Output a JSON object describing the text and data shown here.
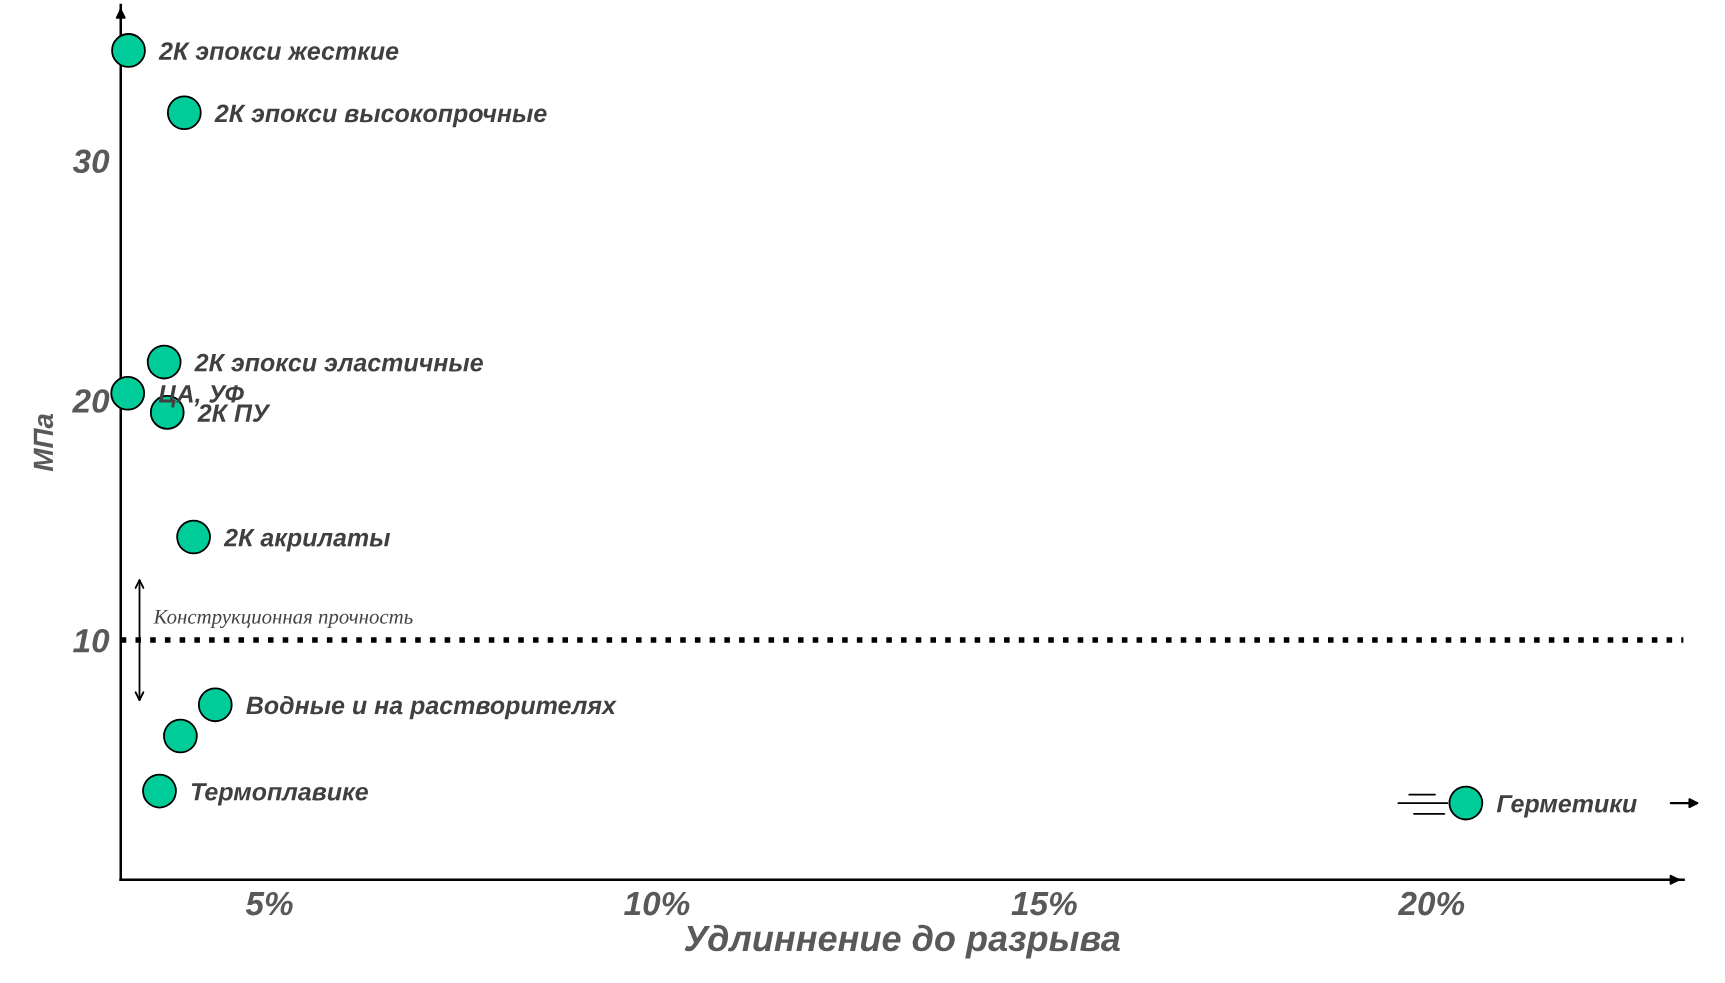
{
  "chart_data": {
    "type": "scatter",
    "xlabel": "Удлиннение до разрыва",
    "ylabel": "МПа",
    "x": [
      3.18,
      3.9,
      3.64,
      3.17,
      3.68,
      4.02,
      4.3,
      3.85,
      3.58,
      20.44
    ],
    "values": [
      34.6,
      32.0,
      21.6,
      20.3,
      19.5,
      14.3,
      7.3,
      6.0,
      3.7,
      3.2
    ],
    "color": "#00cc99",
    "marker": "circle",
    "annotations": [
      {
        "text": "2К эпокси жесткие",
        "x": 3.18,
        "y": 34.6
      },
      {
        "text": "2К эпокси высокопрочные",
        "x": 3.9,
        "y": 32.0
      },
      {
        "text": "2К эпокси эластичные",
        "x": 3.64,
        "y": 21.6
      },
      {
        "text": "ЦА, УФ",
        "x": 3.17,
        "y": 20.3
      },
      {
        "text": "2К ПУ",
        "x": 3.68,
        "y": 19.5
      },
      {
        "text": "2К акрилаты",
        "x": 4.02,
        "y": 14.3
      },
      {
        "text": "Водные и на растворителях",
        "x": 4.3,
        "y": 7.3
      },
      {
        "text": "Термоплавике",
        "x": 3.58,
        "y": 3.7
      },
      {
        "text": "Герметики",
        "x": 20.44,
        "y": 3.2
      }
    ],
    "xlim": [
      3.08,
      23.25
    ],
    "ylim": [
      0,
      36.5
    ],
    "xticks": [
      {
        "value": 5,
        "label": "5%"
      },
      {
        "value": 10,
        "label": "10%"
      },
      {
        "value": 15,
        "label": "15%"
      },
      {
        "value": 20,
        "label": "20%"
      }
    ],
    "yticks": [
      10,
      20,
      30
    ],
    "grid": false,
    "ref_lines": [
      {
        "axis": "y",
        "value": 10,
        "label": "Конструкционная прочность",
        "color": "#000000",
        "line_style": "dotted"
      }
    ]
  }
}
